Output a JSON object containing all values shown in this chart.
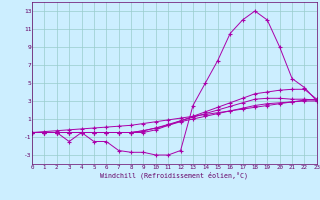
{
  "x": [
    0,
    1,
    2,
    3,
    4,
    5,
    6,
    7,
    8,
    9,
    10,
    11,
    12,
    13,
    14,
    15,
    16,
    17,
    18,
    19,
    20,
    21,
    22,
    23
  ],
  "line1": [
    -0.5,
    -0.5,
    -0.5,
    -1.5,
    -0.5,
    -1.5,
    -1.5,
    -2.5,
    -2.7,
    -2.7,
    -3.0,
    -3.0,
    -2.5,
    2.5,
    5.0,
    7.5,
    10.5,
    12.0,
    13.0,
    12.0,
    9.0,
    5.5,
    4.5,
    3.0
  ],
  "line2": [
    -0.5,
    -0.5,
    -0.5,
    -0.5,
    -0.5,
    -0.5,
    -0.5,
    -0.5,
    -0.5,
    -0.5,
    -0.2,
    0.3,
    0.8,
    1.3,
    1.8,
    2.3,
    2.8,
    3.3,
    3.8,
    4.0,
    4.2,
    4.3,
    4.3,
    3.2
  ],
  "line3": [
    -0.5,
    -0.5,
    -0.5,
    -0.5,
    -0.5,
    -0.5,
    -0.5,
    -0.5,
    -0.5,
    -0.3,
    0.0,
    0.4,
    0.8,
    1.2,
    1.6,
    2.0,
    2.4,
    2.8,
    3.2,
    3.3,
    3.3,
    3.2,
    3.2,
    3.1
  ],
  "line4": [
    -0.5,
    -0.4,
    -0.3,
    -0.2,
    -0.1,
    0.0,
    0.1,
    0.2,
    0.3,
    0.5,
    0.7,
    0.9,
    1.1,
    1.3,
    1.5,
    1.7,
    1.9,
    2.1,
    2.3,
    2.5,
    2.7,
    2.9,
    3.1,
    3.2
  ],
  "line5": [
    -0.5,
    -0.5,
    -0.5,
    -0.5,
    -0.5,
    -0.5,
    -0.5,
    -0.5,
    -0.5,
    -0.3,
    0.0,
    0.3,
    0.7,
    1.0,
    1.3,
    1.6,
    1.9,
    2.2,
    2.5,
    2.7,
    2.8,
    2.9,
    3.0,
    3.0
  ],
  "bg_color": "#cceeff",
  "line_color": "#aa00aa",
  "grid_color": "#99cccc",
  "xlabel": "Windchill (Refroidissement éolien,°C)",
  "ylim": [
    -4,
    14
  ],
  "xlim": [
    0,
    23
  ],
  "yticks": [
    -3,
    -1,
    1,
    3,
    5,
    7,
    9,
    11,
    13
  ],
  "xticks": [
    0,
    1,
    2,
    3,
    4,
    5,
    6,
    7,
    8,
    9,
    10,
    11,
    12,
    13,
    14,
    15,
    16,
    17,
    18,
    19,
    20,
    21,
    22,
    23
  ],
  "tick_label_color": "#660066"
}
